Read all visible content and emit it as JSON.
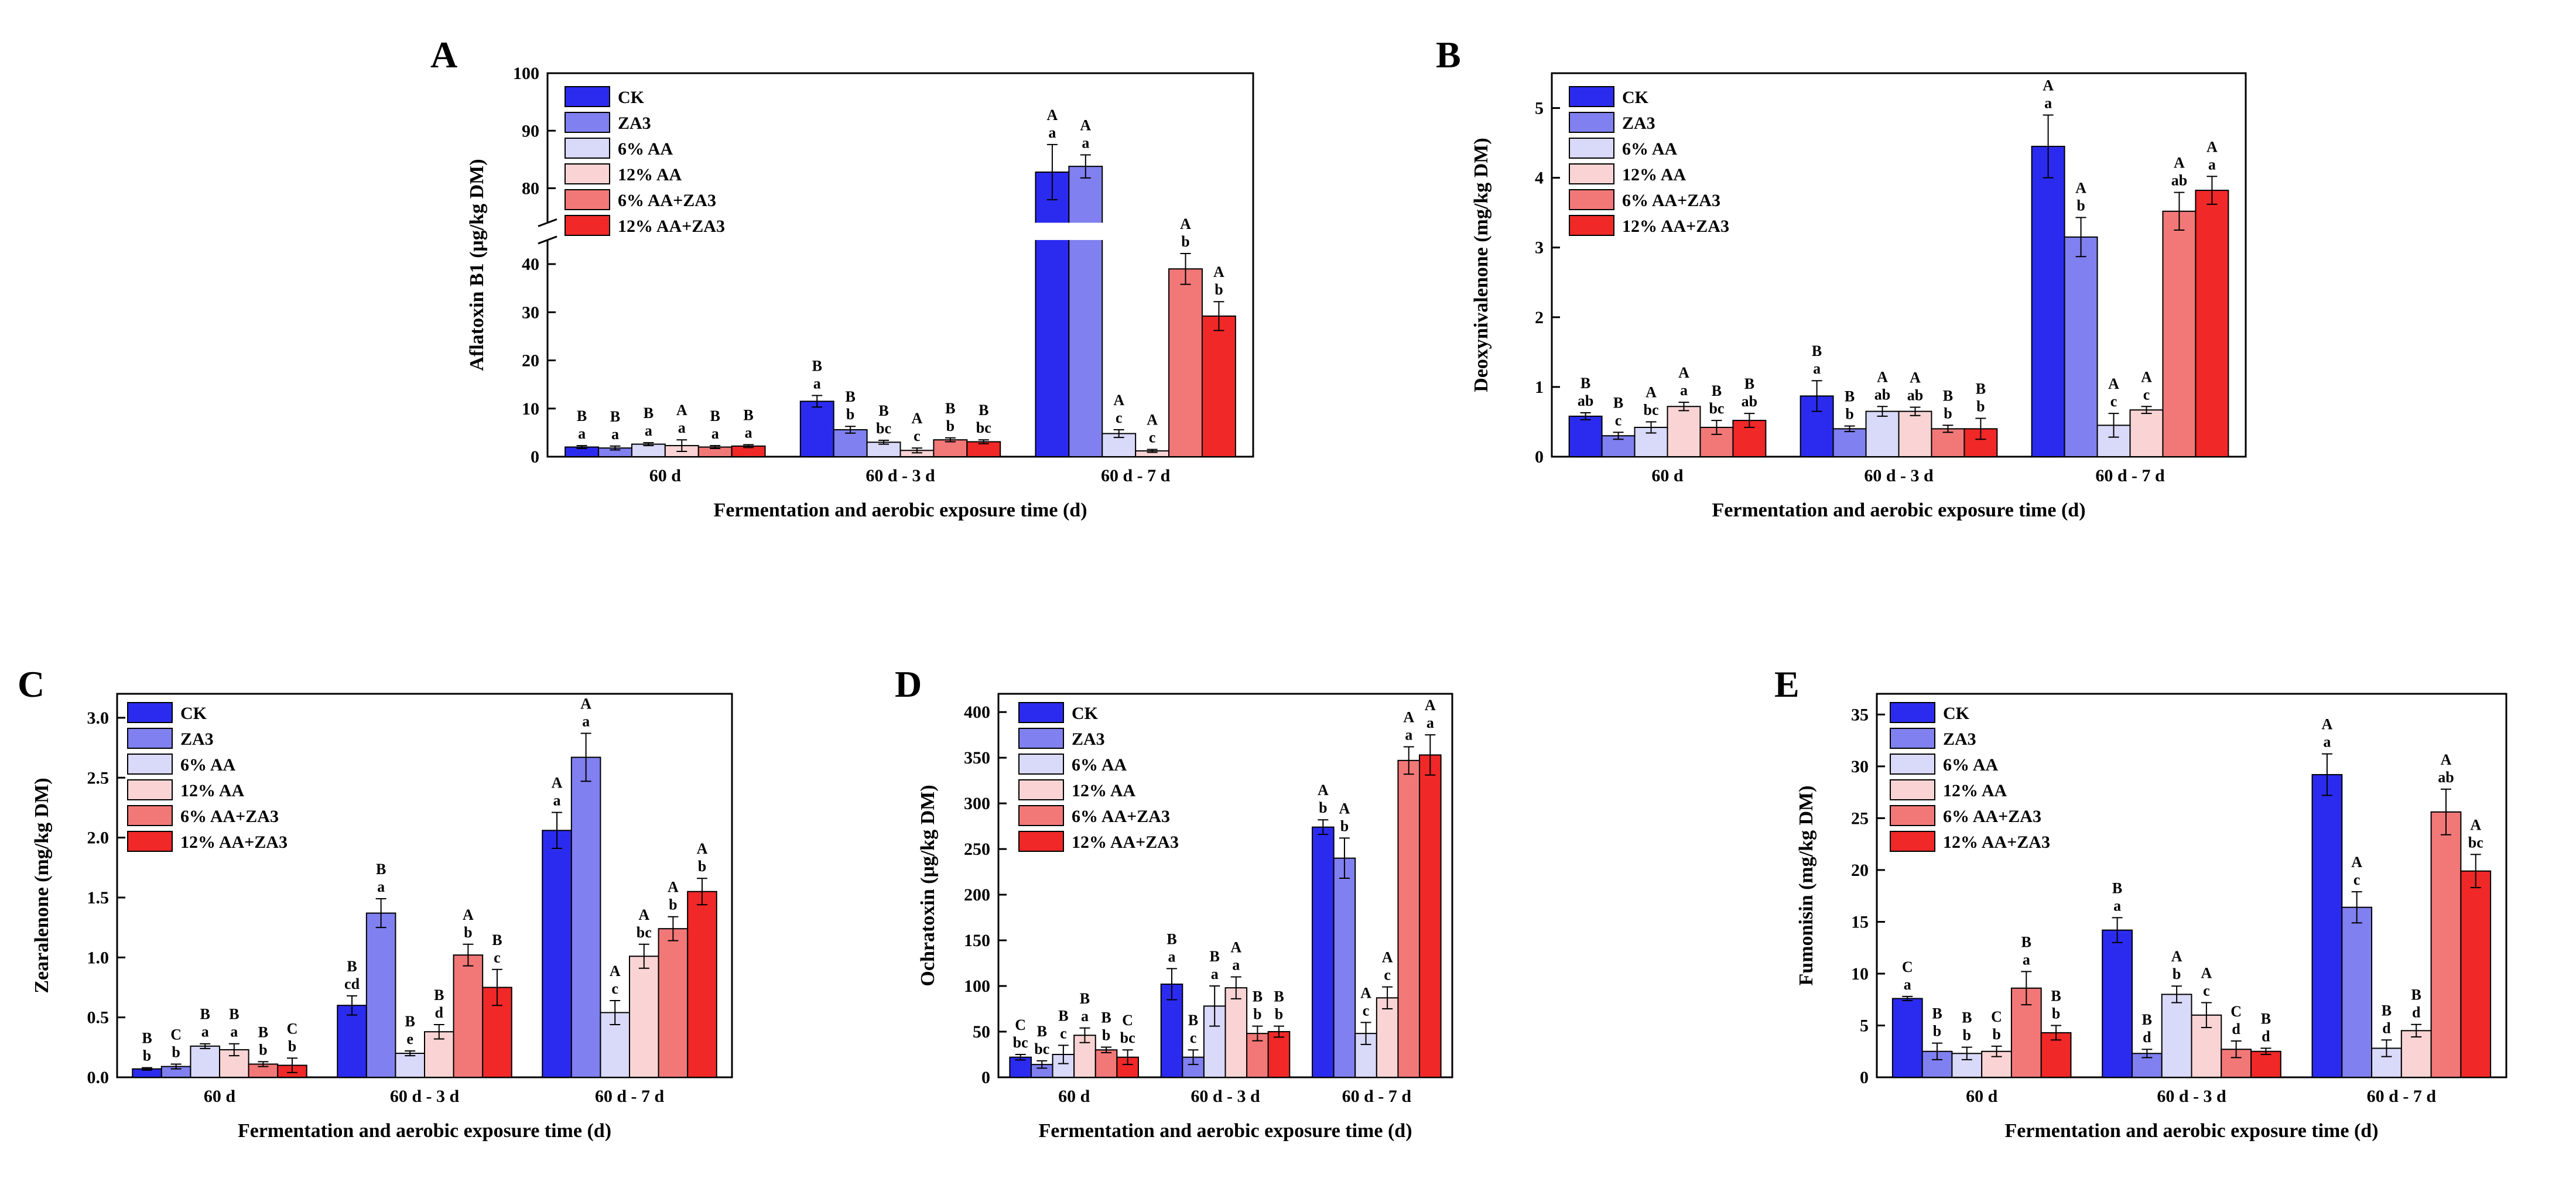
{
  "legend": [
    "CK",
    "ZA3",
    "6% AA",
    "12% AA",
    "6% AA+ZA3",
    "12% AA+ZA3"
  ],
  "series_colors": [
    "#2b2bf0",
    "#8080f0",
    "#d9d9fa",
    "#fad4d4",
    "#f27878",
    "#f02828"
  ],
  "categories": [
    "60 d",
    "60 d - 3 d",
    "60 d - 7 d"
  ],
  "chart_data": [
    {
      "panel": "A",
      "type": "bar",
      "title": "",
      "xlabel": "Fermentation and aerobic exposure time (d)",
      "ylabel": "Aflatoxin B1 (μg/kg DM)",
      "categories": [
        "60 d",
        "60 d - 3 d",
        "60 d - 7 d"
      ],
      "axis_break": {
        "lower": [
          0,
          45
        ],
        "upper": [
          74,
          100
        ]
      },
      "yticks_lower": [
        0,
        10,
        20,
        30,
        40
      ],
      "yticks_upper": [
        80,
        90,
        100
      ],
      "series": [
        {
          "name": "CK",
          "values": [
            2.0,
            11.5,
            82.8
          ],
          "errors": [
            0.3,
            1.2,
            4.8
          ],
          "letters": [
            [
              "B",
              "a"
            ],
            [
              "B",
              "a"
            ],
            [
              "A",
              "a"
            ]
          ]
        },
        {
          "name": "ZA3",
          "values": [
            1.8,
            5.6,
            83.8
          ],
          "errors": [
            0.4,
            0.7,
            2.0
          ],
          "letters": [
            [
              "B",
              "a"
            ],
            [
              "B",
              "b"
            ],
            [
              "A",
              "a"
            ]
          ]
        },
        {
          "name": "6% AA",
          "values": [
            2.6,
            3.0,
            4.8
          ],
          "errors": [
            0.3,
            0.4,
            0.8
          ],
          "letters": [
            [
              "B",
              "a"
            ],
            [
              "B",
              "bc"
            ],
            [
              "A",
              "c"
            ]
          ]
        },
        {
          "name": "12% AA",
          "values": [
            2.3,
            1.3,
            1.2
          ],
          "errors": [
            1.2,
            0.5,
            0.3
          ],
          "letters": [
            [
              "A",
              "a"
            ],
            [
              "A",
              "c"
            ],
            [
              "A",
              "c"
            ]
          ]
        },
        {
          "name": "6% AA+ZA3",
          "values": [
            2.0,
            3.5,
            39.0
          ],
          "errors": [
            0.3,
            0.4,
            3.2
          ],
          "letters": [
            [
              "B",
              "a"
            ],
            [
              "B",
              "b"
            ],
            [
              "A",
              "b"
            ]
          ]
        },
        {
          "name": "12% AA+ZA3",
          "values": [
            2.2,
            3.1,
            29.2
          ],
          "errors": [
            0.3,
            0.4,
            3.0
          ],
          "letters": [
            [
              "B",
              "a"
            ],
            [
              "B",
              "bc"
            ],
            [
              "A",
              "b"
            ]
          ]
        }
      ]
    },
    {
      "panel": "B",
      "type": "bar",
      "title": "",
      "xlabel": "Fermentation and aerobic exposure time (d)",
      "ylabel": "Deoxynivalenone (mg/kg DM)",
      "categories": [
        "60 d",
        "60 d - 3 d",
        "60 d - 7 d"
      ],
      "ylim": [
        0,
        5.5
      ],
      "yticks": [
        0,
        1,
        2,
        3,
        4,
        5
      ],
      "series": [
        {
          "name": "CK",
          "values": [
            0.58,
            0.87,
            4.45
          ],
          "errors": [
            0.05,
            0.22,
            0.45
          ],
          "letters": [
            [
              "B",
              "ab"
            ],
            [
              "B",
              "a"
            ],
            [
              "A",
              "a"
            ]
          ]
        },
        {
          "name": "ZA3",
          "values": [
            0.3,
            0.4,
            3.15
          ],
          "errors": [
            0.05,
            0.04,
            0.28
          ],
          "letters": [
            [
              "B",
              "c"
            ],
            [
              "B",
              "b"
            ],
            [
              "A",
              "b"
            ]
          ]
        },
        {
          "name": "6% AA",
          "values": [
            0.42,
            0.65,
            0.45
          ],
          "errors": [
            0.08,
            0.07,
            0.17
          ],
          "letters": [
            [
              "A",
              "bc"
            ],
            [
              "A",
              "ab"
            ],
            [
              "A",
              "c"
            ]
          ]
        },
        {
          "name": "12% AA",
          "values": [
            0.72,
            0.65,
            0.67
          ],
          "errors": [
            0.06,
            0.06,
            0.05
          ],
          "letters": [
            [
              "A",
              "a"
            ],
            [
              "A",
              "ab"
            ],
            [
              "A",
              "c"
            ]
          ]
        },
        {
          "name": "6% AA+ZA3",
          "values": [
            0.42,
            0.4,
            3.52
          ],
          "errors": [
            0.1,
            0.05,
            0.27
          ],
          "letters": [
            [
              "B",
              "bc"
            ],
            [
              "B",
              "b"
            ],
            [
              "A",
              "ab"
            ]
          ]
        },
        {
          "name": "12% AA+ZA3",
          "values": [
            0.52,
            0.4,
            3.82
          ],
          "errors": [
            0.1,
            0.15,
            0.2
          ],
          "letters": [
            [
              "B",
              "ab"
            ],
            [
              "B",
              "b"
            ],
            [
              "A",
              "a"
            ]
          ]
        }
      ]
    },
    {
      "panel": "C",
      "type": "bar",
      "title": "",
      "xlabel": "Fermentation and aerobic exposure time (d)",
      "ylabel": "Zearalenone (mg/kg DM)",
      "categories": [
        "60 d",
        "60 d - 3 d",
        "60 d - 7 d"
      ],
      "ylim": [
        0,
        3.2
      ],
      "yticks": [
        0.0,
        0.5,
        1.0,
        1.5,
        2.0,
        2.5,
        3.0
      ],
      "series": [
        {
          "name": "CK",
          "values": [
            0.07,
            0.6,
            2.06
          ],
          "errors": [
            0.01,
            0.08,
            0.15
          ],
          "letters": [
            [
              "B",
              "b"
            ],
            [
              "B",
              "cd"
            ],
            [
              "A",
              "a"
            ]
          ]
        },
        {
          "name": "ZA3",
          "values": [
            0.09,
            1.37,
            2.67
          ],
          "errors": [
            0.02,
            0.12,
            0.2
          ],
          "letters": [
            [
              "C",
              "b"
            ],
            [
              "B",
              "a"
            ],
            [
              "A",
              "a"
            ]
          ]
        },
        {
          "name": "6% AA",
          "values": [
            0.26,
            0.2,
            0.54
          ],
          "errors": [
            0.02,
            0.02,
            0.1
          ],
          "letters": [
            [
              "B",
              "a"
            ],
            [
              "B",
              "e"
            ],
            [
              "A",
              "c"
            ]
          ]
        },
        {
          "name": "12% AA",
          "values": [
            0.23,
            0.38,
            1.01
          ],
          "errors": [
            0.05,
            0.06,
            0.1
          ],
          "letters": [
            [
              "B",
              "a"
            ],
            [
              "B",
              "d"
            ],
            [
              "A",
              "bc"
            ]
          ]
        },
        {
          "name": "6% AA+ZA3",
          "values": [
            0.11,
            1.02,
            1.24
          ],
          "errors": [
            0.02,
            0.09,
            0.1
          ],
          "letters": [
            [
              "B",
              "b"
            ],
            [
              "A",
              "b"
            ],
            [
              "A",
              "b"
            ]
          ]
        },
        {
          "name": "12% AA+ZA3",
          "values": [
            0.1,
            0.75,
            1.55
          ],
          "errors": [
            0.06,
            0.15,
            0.11
          ],
          "letters": [
            [
              "C",
              "b"
            ],
            [
              "B",
              "c"
            ],
            [
              "A",
              "b"
            ]
          ]
        }
      ]
    },
    {
      "panel": "D",
      "type": "bar",
      "title": "",
      "xlabel": "Fermentation and aerobic exposure time (d)",
      "ylabel": "Ochratoxin (μg/kg DM)",
      "categories": [
        "60 d",
        "60 d - 3 d",
        "60 d - 7 d"
      ],
      "ylim": [
        0,
        420
      ],
      "yticks": [
        0,
        50,
        100,
        150,
        200,
        250,
        300,
        350,
        400
      ],
      "series": [
        {
          "name": "CK",
          "values": [
            22,
            102,
            274
          ],
          "errors": [
            3,
            17,
            8
          ],
          "letters": [
            [
              "C",
              "bc"
            ],
            [
              "B",
              "a"
            ],
            [
              "A",
              "b"
            ]
          ]
        },
        {
          "name": "ZA3",
          "values": [
            14,
            22,
            240
          ],
          "errors": [
            4,
            8,
            22
          ],
          "letters": [
            [
              "B",
              "bc"
            ],
            [
              "B",
              "c"
            ],
            [
              "A",
              "b"
            ]
          ]
        },
        {
          "name": "6% AA",
          "values": [
            25,
            78,
            48
          ],
          "errors": [
            10,
            22,
            12
          ],
          "letters": [
            [
              "B",
              "c"
            ],
            [
              "B",
              "a"
            ],
            [
              "A",
              "c"
            ]
          ]
        },
        {
          "name": "12% AA",
          "values": [
            46,
            98,
            87
          ],
          "errors": [
            8,
            12,
            12
          ],
          "letters": [
            [
              "B",
              "a"
            ],
            [
              "A",
              "a"
            ],
            [
              "A",
              "c"
            ]
          ]
        },
        {
          "name": "6% AA+ZA3",
          "values": [
            30,
            48,
            347
          ],
          "errors": [
            3,
            8,
            15
          ],
          "letters": [
            [
              "B",
              "b"
            ],
            [
              "B",
              "b"
            ],
            [
              "A",
              "a"
            ]
          ]
        },
        {
          "name": "12% AA+ZA3",
          "values": [
            22,
            50,
            353
          ],
          "errors": [
            8,
            6,
            22
          ],
          "letters": [
            [
              "C",
              "bc"
            ],
            [
              "B",
              "b"
            ],
            [
              "A",
              "a"
            ]
          ]
        }
      ]
    },
    {
      "panel": "E",
      "type": "bar",
      "title": "",
      "xlabel": "Fermentation and aerobic exposure time (d)",
      "ylabel": "Fumonisin (mg/kg DM)",
      "categories": [
        "60 d",
        "60 d - 3 d",
        "60 d - 7 d"
      ],
      "ylim": [
        0,
        37
      ],
      "yticks": [
        0,
        5,
        10,
        15,
        20,
        25,
        30,
        35
      ],
      "series": [
        {
          "name": "CK",
          "values": [
            7.6,
            14.2,
            29.2
          ],
          "errors": [
            0.2,
            1.2,
            2.0
          ],
          "letters": [
            [
              "C",
              "a"
            ],
            [
              "B",
              "a"
            ],
            [
              "A",
              "a"
            ]
          ]
        },
        {
          "name": "ZA3",
          "values": [
            2.5,
            2.3,
            16.4
          ],
          "errors": [
            0.8,
            0.4,
            1.5
          ],
          "letters": [
            [
              "B",
              "b"
            ],
            [
              "B",
              "d"
            ],
            [
              "A",
              "c"
            ]
          ]
        },
        {
          "name": "6% AA",
          "values": [
            2.3,
            8.0,
            2.8
          ],
          "errors": [
            0.6,
            0.8,
            0.8
          ],
          "letters": [
            [
              "B",
              "b"
            ],
            [
              "A",
              "b"
            ],
            [
              "B",
              "d"
            ]
          ]
        },
        {
          "name": "12% AA",
          "values": [
            2.5,
            6.0,
            4.5
          ],
          "errors": [
            0.5,
            1.2,
            0.6
          ],
          "letters": [
            [
              "C",
              "b"
            ],
            [
              "A",
              "c"
            ],
            [
              "B",
              "d"
            ]
          ]
        },
        {
          "name": "6% AA+ZA3",
          "values": [
            8.6,
            2.7,
            25.6
          ],
          "errors": [
            1.6,
            0.8,
            2.2
          ],
          "letters": [
            [
              "B",
              "a"
            ],
            [
              "C",
              "d"
            ],
            [
              "A",
              "ab"
            ]
          ]
        },
        {
          "name": "12% AA+ZA3",
          "values": [
            4.3,
            2.5,
            19.9
          ],
          "errors": [
            0.7,
            0.3,
            1.6
          ],
          "letters": [
            [
              "B",
              "b"
            ],
            [
              "B",
              "d"
            ],
            [
              "A",
              "bc"
            ]
          ]
        }
      ]
    }
  ]
}
